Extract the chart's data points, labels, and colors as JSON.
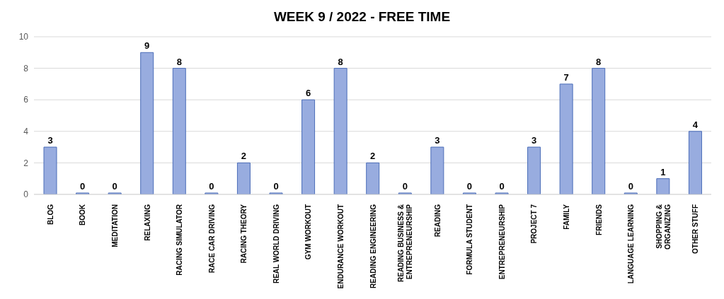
{
  "chart_data": {
    "type": "bar",
    "title": "WEEK 9 / 2022 - FREE TIME",
    "categories": [
      "BLOG",
      "BOOK",
      "MEDITATION",
      "RELAXING",
      "RACING SIMULATOR",
      "RACE CAR DRIVING",
      "RACING THEORY",
      "REAL WORLD DRIVING",
      "GYM WORKOUT",
      "ENDURANCE WORKOUT",
      "READING ENGINEERING",
      "READING BUSINESS & ENTREPRENEURSHIP",
      "READING",
      "FORMULA STUDENT",
      "ENTREPRENEURSHIP",
      "PROJECT 7",
      "FAMILY",
      "FRIENDS",
      "LANGUAGE LEARNING",
      "SHOPPING & ORGANIZING",
      "OTHER STUFF"
    ],
    "values": [
      3,
      0,
      0,
      9,
      8,
      0,
      2,
      0,
      6,
      8,
      2,
      0,
      3,
      0,
      0,
      3,
      7,
      8,
      0,
      1,
      4
    ],
    "color": "#98acdf",
    "ylim": [
      0,
      10
    ],
    "yticks": [
      0,
      2,
      4,
      6,
      8,
      10
    ],
    "grid": "y",
    "data_labels": true
  }
}
